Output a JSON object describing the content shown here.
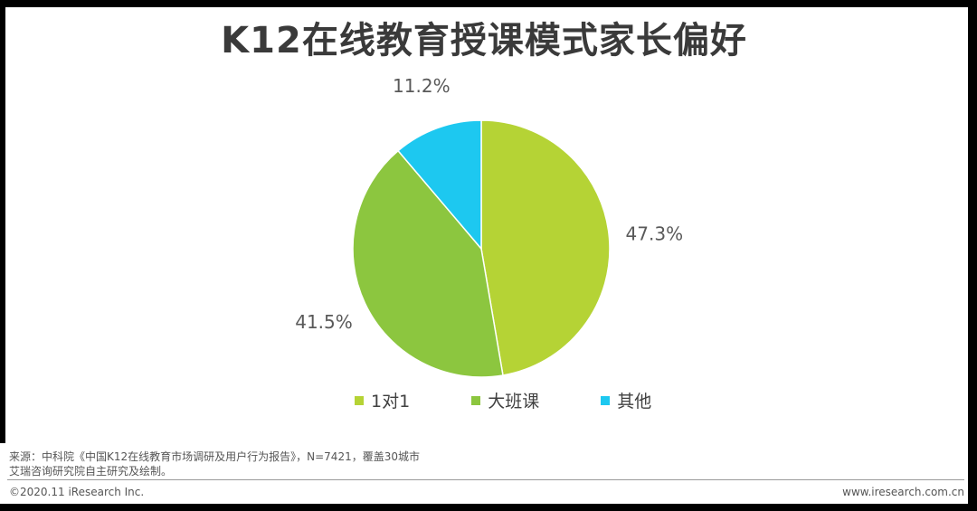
{
  "title": "K12在线教育授课模式家长偏好",
  "chart_data": {
    "type": "pie",
    "categories": [
      "1对1",
      "大班课",
      "其他"
    ],
    "values": [
      47.3,
      41.5,
      11.2
    ],
    "labels": [
      "47.3%",
      "41.5%",
      "11.2%"
    ],
    "colors": [
      "#b5d335",
      "#8cc63f",
      "#1dc8f0"
    ],
    "legend_position": "bottom"
  },
  "source": {
    "line1": "来源：中科院《中国K12在线教育市场调研及用户行为报告》，N=7421，覆盖30城市",
    "line2": "艾瑞咨询研究院自主研究及绘制。"
  },
  "footer": {
    "copyright": "©2020.11 iResearch Inc.",
    "website": "www.iresearch.com.cn"
  }
}
